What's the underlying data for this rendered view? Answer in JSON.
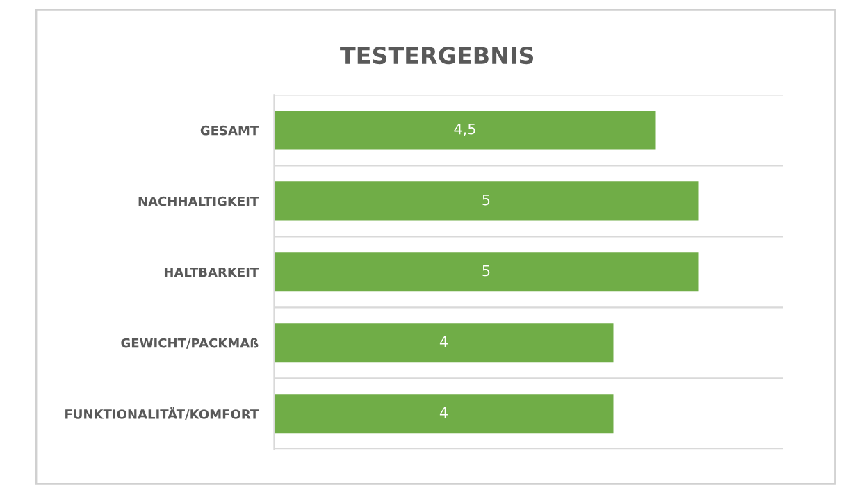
{
  "chart_data": {
    "type": "bar",
    "orientation": "horizontal",
    "title": "TESTERGEBNIS",
    "categories": [
      "GESAMT",
      "NACHHALTIGKEIT",
      "HALTBARKEIT",
      "GEWICHT/PACKMAß",
      "FUNKTIONALITÄT/KOMFORT"
    ],
    "values": [
      4.5,
      5,
      5,
      4,
      4
    ],
    "value_labels": [
      "4,5",
      "5",
      "5",
      "4",
      "4"
    ],
    "color": "#70ad47",
    "xlim": [
      0,
      6
    ],
    "tick_labels": "y",
    "legend": false
  }
}
